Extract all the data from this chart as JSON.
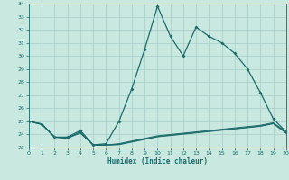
{
  "xlabel": "Humidex (Indice chaleur)",
  "xlim": [
    0,
    20
  ],
  "ylim": [
    23,
    34
  ],
  "yticks": [
    23,
    24,
    25,
    26,
    27,
    28,
    29,
    30,
    31,
    32,
    33,
    34
  ],
  "xticks": [
    0,
    1,
    2,
    3,
    4,
    5,
    6,
    7,
    8,
    9,
    10,
    11,
    12,
    13,
    14,
    15,
    16,
    17,
    18,
    19,
    20
  ],
  "bg_color": "#c8e8e0",
  "grid_color": "#a8ccc8",
  "line_color": "#1a6b6b",
  "series1_x": [
    0,
    1,
    2,
    3,
    4,
    5,
    6,
    7,
    8,
    9,
    10,
    11,
    12,
    13,
    14,
    15,
    16,
    17,
    18,
    19,
    20
  ],
  "series1_y": [
    25.0,
    24.8,
    23.8,
    23.8,
    24.3,
    23.2,
    23.3,
    25.0,
    27.5,
    30.5,
    33.8,
    31.5,
    30.0,
    32.2,
    31.5,
    31.0,
    30.2,
    29.0,
    27.2,
    25.2,
    24.2
  ],
  "series2_x": [
    0,
    1,
    2,
    3,
    4,
    5,
    6,
    7,
    8,
    9,
    10,
    11,
    12,
    13,
    14,
    15,
    16,
    17,
    18,
    19,
    20
  ],
  "series2_y": [
    25.0,
    24.8,
    23.8,
    23.7,
    24.2,
    23.2,
    23.2,
    23.3,
    23.5,
    23.7,
    23.9,
    24.0,
    24.1,
    24.2,
    24.3,
    24.4,
    24.5,
    24.6,
    24.7,
    24.9,
    24.2
  ],
  "series3_x": [
    0,
    1,
    2,
    3,
    4,
    5,
    6,
    7,
    8,
    9,
    10,
    11,
    12,
    13,
    14,
    15,
    16,
    17,
    18,
    19,
    20
  ],
  "series3_y": [
    25.0,
    24.8,
    23.8,
    23.75,
    24.15,
    23.2,
    23.2,
    23.25,
    23.45,
    23.65,
    23.85,
    23.95,
    24.05,
    24.15,
    24.25,
    24.35,
    24.45,
    24.55,
    24.65,
    24.85,
    24.15
  ],
  "series4_x": [
    0,
    1,
    2,
    3,
    4,
    5,
    6,
    7,
    8,
    9,
    10,
    11,
    12,
    13,
    14,
    15,
    16,
    17,
    18,
    19,
    20
  ],
  "series4_y": [
    25.0,
    24.75,
    23.78,
    23.72,
    24.1,
    23.18,
    23.18,
    23.22,
    23.42,
    23.62,
    23.82,
    23.92,
    24.02,
    24.12,
    24.22,
    24.32,
    24.42,
    24.52,
    24.62,
    24.82,
    24.1
  ]
}
